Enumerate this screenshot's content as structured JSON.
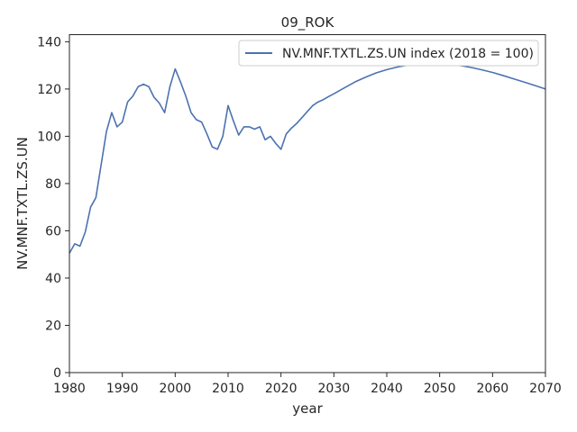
{
  "chart_data": {
    "type": "line",
    "title": "09_ROK",
    "xlabel": "year",
    "ylabel": "NV.MNF.TXTL.ZS.UN",
    "xlim": [
      1980,
      2070
    ],
    "ylim": [
      0,
      143
    ],
    "xticks": [
      1980,
      1990,
      2000,
      2010,
      2020,
      2030,
      2040,
      2050,
      2060,
      2070
    ],
    "yticks": [
      0,
      20,
      40,
      60,
      80,
      100,
      120,
      140
    ],
    "grid": false,
    "legend_position": "top-right",
    "series": [
      {
        "name": "NV.MNF.TXTL.ZS.UN index (2018 = 100)",
        "color": "#4c72b0",
        "x": [
          1980,
          1981,
          1982,
          1983,
          1984,
          1985,
          1986,
          1987,
          1988,
          1989,
          1990,
          1991,
          1992,
          1993,
          1994,
          1995,
          1996,
          1997,
          1998,
          1999,
          2000,
          2001,
          2002,
          2003,
          2004,
          2005,
          2006,
          2007,
          2008,
          2009,
          2010,
          2011,
          2012,
          2013,
          2014,
          2015,
          2016,
          2017,
          2018,
          2019,
          2020,
          2021,
          2022,
          2023,
          2024,
          2025,
          2026,
          2027,
          2028,
          2029,
          2030,
          2032,
          2034,
          2036,
          2038,
          2040,
          2042,
          2044,
          2046,
          2048,
          2050,
          2052,
          2054,
          2056,
          2058,
          2060,
          2062,
          2064,
          2066,
          2068,
          2070
        ],
        "y": [
          50.5,
          54.5,
          53.5,
          59.5,
          70,
          74,
          88,
          102,
          110,
          104,
          106,
          114.5,
          117,
          121,
          122,
          121,
          116.5,
          114,
          110,
          121,
          128.5,
          123,
          117,
          110,
          107,
          106,
          101,
          95.5,
          94.5,
          100,
          113,
          106.5,
          100.5,
          104,
          104,
          103,
          104,
          98.5,
          100,
          97,
          94.5,
          101,
          103.5,
          105.5,
          108,
          110.5,
          113,
          114.5,
          115.5,
          116.8,
          118,
          120.5,
          123,
          125,
          126.8,
          128.2,
          129.3,
          130.1,
          130.6,
          130.8,
          130.8,
          130.5,
          129.9,
          129.1,
          128.1,
          127,
          125.7,
          124.3,
          122.9,
          121.5,
          120
        ]
      }
    ]
  }
}
